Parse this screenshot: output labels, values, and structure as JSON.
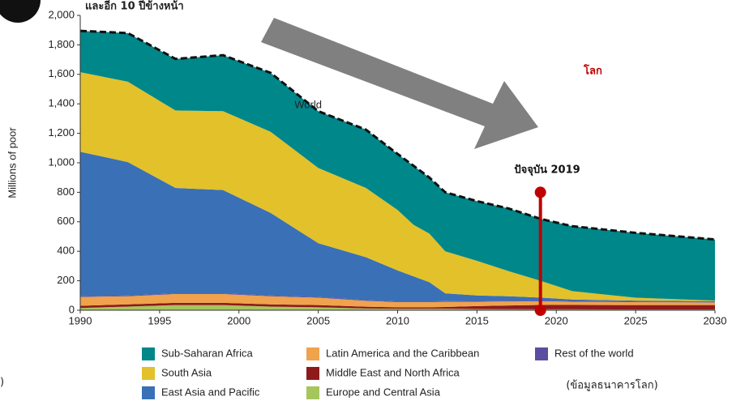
{
  "chart_data": {
    "type": "stacked_area",
    "title": "และอีก 10 ปีข้างหน้า",
    "headline": "โลก",
    "annotation": "ปัจจุบัน 2019",
    "source": "(ข้อมูลธนาคารโลก)",
    "left_fragment": ")",
    "total_label": "World",
    "y_label": "Millions of poor",
    "x": [
      1990,
      1993,
      1996,
      1999,
      2002,
      2005,
      2008,
      2010,
      2011,
      2012,
      2013,
      2015,
      2017,
      2019,
      2021,
      2025,
      2030
    ],
    "series": [
      {
        "name": "Europe and Central Asia",
        "color": "#a6c65c",
        "values": [
          15,
          25,
          35,
          35,
          25,
          20,
          12,
          10,
          10,
          10,
          10,
          8,
          7,
          6,
          6,
          5,
          5
        ]
      },
      {
        "name": "Middle East and North Africa",
        "color": "#8e1b1b",
        "values": [
          15,
          15,
          15,
          15,
          15,
          15,
          12,
          10,
          10,
          10,
          12,
          20,
          25,
          30,
          30,
          30,
          30
        ]
      },
      {
        "name": "Latin America and the Caribbean",
        "color": "#f0a24c",
        "values": [
          60,
          55,
          60,
          60,
          55,
          50,
          40,
          35,
          35,
          35,
          35,
          30,
          28,
          25,
          22,
          20,
          18
        ]
      },
      {
        "name": "Rest of the world",
        "color": "#5a4ea0",
        "values": [
          5,
          5,
          5,
          5,
          5,
          5,
          5,
          5,
          5,
          5,
          5,
          5,
          5,
          5,
          5,
          5,
          5
        ]
      },
      {
        "name": "East Asia and Pacific",
        "color": "#3a70b6",
        "values": [
          980,
          905,
          715,
          700,
          560,
          365,
          291,
          210,
          170,
          130,
          53,
          37,
          30,
          20,
          10,
          5,
          3
        ]
      },
      {
        "name": "South Asia",
        "color": "#e2c12b",
        "values": [
          540,
          545,
          525,
          535,
          550,
          510,
          470,
          410,
          350,
          330,
          285,
          235,
          170,
          114,
          57,
          20,
          4
        ]
      },
      {
        "name": "Sub-Saharan Africa",
        "color": "#00878a",
        "values": [
          280,
          330,
          350,
          380,
          400,
          385,
          395,
          380,
          400,
          380,
          400,
          405,
          425,
          420,
          440,
          440,
          415
        ]
      }
    ],
    "marker": {
      "x": 2019,
      "y": [
        0,
        800
      ],
      "color": "#c00000"
    },
    "xlim": [
      1990,
      2030
    ],
    "xticks": [
      1990,
      1995,
      2000,
      2005,
      2010,
      2015,
      2020,
      2025,
      2030
    ],
    "ylim": [
      0,
      2000
    ],
    "yticks": [
      0,
      200,
      400,
      600,
      800,
      {
        "value": 1000,
        "label": "1,000"
      },
      {
        "value": 1200,
        "label": "1,200"
      },
      {
        "value": 1400,
        "label": "1,400"
      },
      {
        "value": 1600,
        "label": "1,600"
      },
      {
        "value": 1800,
        "label": "1,800"
      },
      {
        "value": 2000,
        "label": "2,000"
      }
    ]
  }
}
